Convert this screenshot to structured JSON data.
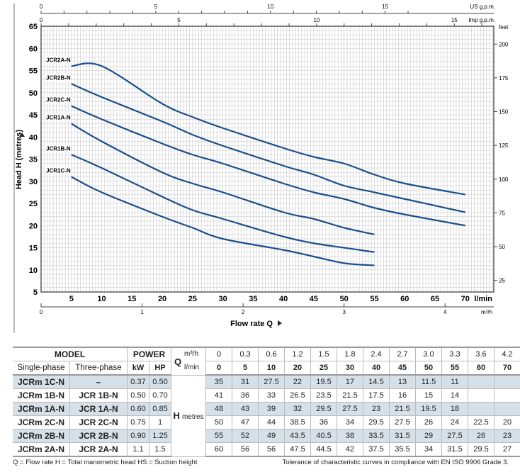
{
  "chart_data": {
    "type": "line",
    "xlabel": "Flow rate  Q",
    "ylabel": "Head H (metres)",
    "x_unit": "l/min",
    "xlim": [
      0,
      74.7
    ],
    "ylim": [
      5,
      65
    ],
    "x_ticks": [
      5,
      10,
      15,
      20,
      25,
      30,
      35,
      40,
      45,
      50,
      55,
      60,
      65,
      70
    ],
    "y_ticks": [
      5,
      10,
      15,
      20,
      25,
      30,
      35,
      40,
      45,
      50,
      55,
      60,
      65
    ],
    "secondary_axes": {
      "m3h": {
        "unit": "m³/h",
        "ticks": [
          0,
          1,
          2,
          3,
          4
        ]
      },
      "feet": {
        "unit": "feet",
        "ticks": [
          25,
          50,
          75,
          100,
          125,
          150,
          175,
          200
        ]
      },
      "us_gpm": {
        "unit": "US g.p.m.",
        "ticks": [
          0,
          5,
          10,
          15
        ]
      },
      "imp_gpm": {
        "unit": "Imp g.p.m.",
        "ticks": [
          0,
          5,
          10,
          15
        ]
      }
    },
    "grid": true,
    "series": [
      {
        "name": "JCR2A-N",
        "x": [
          5,
          10,
          20,
          25,
          30,
          40,
          45,
          50,
          55,
          60,
          70
        ],
        "y": [
          56,
          56,
          47.5,
          44.5,
          42,
          37.5,
          35.5,
          34,
          31.5,
          29.5,
          27
        ]
      },
      {
        "name": "JCR2B-N",
        "x": [
          5,
          10,
          20,
          25,
          30,
          40,
          45,
          50,
          55,
          60,
          70
        ],
        "y": [
          52,
          49,
          43.5,
          40.5,
          38,
          33.5,
          31.5,
          29,
          27.5,
          26,
          23
        ]
      },
      {
        "name": "JCR2C-N",
        "x": [
          5,
          10,
          20,
          25,
          30,
          40,
          45,
          50,
          55,
          60,
          70
        ],
        "y": [
          47,
          44,
          38.5,
          36,
          34,
          29.5,
          27.5,
          26,
          24,
          22.5,
          20
        ]
      },
      {
        "name": "JCR1A-N",
        "x": [
          5,
          10,
          20,
          25,
          30,
          40,
          45,
          50,
          55
        ],
        "y": [
          43,
          39,
          32,
          29.5,
          27.5,
          23,
          21.5,
          19.5,
          18
        ]
      },
      {
        "name": "JCR1B-N",
        "x": [
          5,
          10,
          20,
          25,
          30,
          40,
          45,
          50,
          55
        ],
        "y": [
          36,
          33,
          26.5,
          23.5,
          21.5,
          17.5,
          16,
          15,
          14
        ]
      },
      {
        "name": "JCR1C-N",
        "x": [
          5,
          10,
          20,
          25,
          30,
          40,
          45,
          50,
          55
        ],
        "y": [
          31,
          27.5,
          22,
          19.5,
          17,
          14.5,
          13,
          11.5,
          11
        ]
      }
    ],
    "line_color": "#1a4f8c"
  },
  "table": {
    "model": "MODEL",
    "power": "POWER",
    "single": "Single-phase",
    "three": "Three-phase",
    "kw": "kW",
    "hp": "HP",
    "q": "Q",
    "m3h": "m³/h",
    "lmin": "l/min",
    "h": "H",
    "metres": "metres",
    "q_m3h": [
      "0",
      "0.3",
      "0.6",
      "1.2",
      "1.5",
      "1.8",
      "2.4",
      "2.7",
      "3.0",
      "3.3",
      "3.6",
      "4.2"
    ],
    "q_lmin": [
      "0",
      "5",
      "10",
      "20",
      "25",
      "30",
      "40",
      "45",
      "50",
      "55",
      "60",
      "70"
    ],
    "rows": [
      {
        "single": "JCRm 1C-N",
        "three": "–",
        "kw": "0.37",
        "hp": "0.50",
        "h": [
          "35",
          "31",
          "27.5",
          "22",
          "19.5",
          "17",
          "14.5",
          "13",
          "11.5",
          "11",
          "",
          ""
        ]
      },
      {
        "single": "JCRm 1B-N",
        "three": "JCR 1B-N",
        "kw": "0.50",
        "hp": "0.70",
        "h": [
          "41",
          "36",
          "33",
          "26.5",
          "23.5",
          "21.5",
          "17.5",
          "16",
          "15",
          "14",
          "",
          ""
        ]
      },
      {
        "single": "JCRm 1A-N",
        "three": "JCR 1A-N",
        "kw": "0.60",
        "hp": "0.85",
        "h": [
          "48",
          "43",
          "39",
          "32",
          "29.5",
          "27.5",
          "23",
          "21.5",
          "19.5",
          "18",
          "",
          ""
        ]
      },
      {
        "single": "JCRm 2C-N",
        "three": "JCR 2C-N",
        "kw": "0.75",
        "hp": "1",
        "h": [
          "50",
          "47",
          "44",
          "38.5",
          "36",
          "34",
          "29.5",
          "27.5",
          "26",
          "24",
          "22.5",
          "20"
        ]
      },
      {
        "single": "JCRm 2B-N",
        "three": "JCR 2B-N",
        "kw": "0.90",
        "hp": "1.25",
        "h": [
          "55",
          "52",
          "49",
          "43.5",
          "40.5",
          "38",
          "33.5",
          "31.5",
          "29",
          "27.5",
          "26",
          "23"
        ]
      },
      {
        "single": "JCRm 2A-N",
        "three": "JCR 2A-N",
        "kw": "1.1",
        "hp": "1.5",
        "h": [
          "60",
          "56",
          "56",
          "47.5",
          "44.5",
          "42",
          "37.5",
          "35.5",
          "34",
          "31.5",
          "29.5",
          "27"
        ]
      }
    ]
  },
  "footer": {
    "legend": "Q = Flow rate   H = Total manometric head   HS = Suction height",
    "tolerance": "Tolerance of characteristic curves in compliance with EN ISO 9906 Grade 3."
  }
}
